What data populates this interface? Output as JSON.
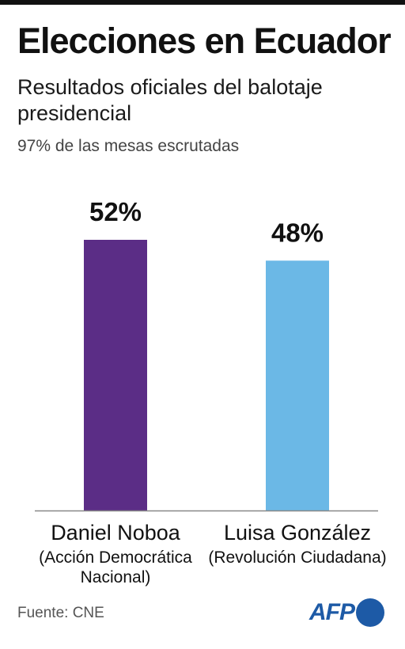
{
  "header": {
    "title": "Elecciones en Ecuador",
    "subtitle": "Resultados oficiales del balotaje presidencial",
    "note": "97% de las mesas escrutadas"
  },
  "chart_data": {
    "type": "bar",
    "categories": [
      "Daniel Noboa",
      "Luisa González"
    ],
    "parties": [
      "(Acción Democrática Nacional)",
      "(Revolución Ciudadana)"
    ],
    "values": [
      52,
      48
    ],
    "value_labels": [
      "52%",
      "48%"
    ],
    "colors": [
      "#5b2d86",
      "#6bb8e6"
    ],
    "ylim": [
      0,
      60
    ],
    "grid": false
  },
  "footer": {
    "source": "Fuente: CNE",
    "logo_text": "AFP"
  }
}
